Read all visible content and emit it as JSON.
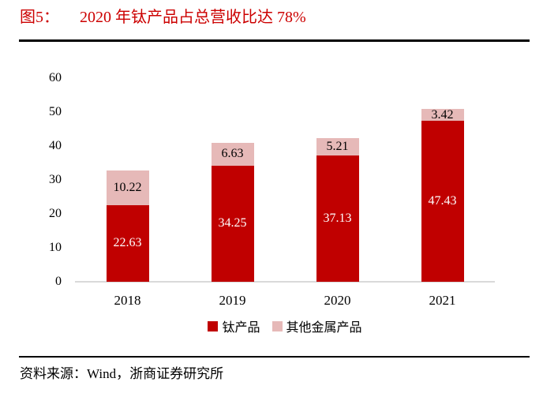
{
  "header": {
    "figure_label": "图5：",
    "title": "2020 年钛产品占总营收比达 78%"
  },
  "colors": {
    "title_red": "#cc0000",
    "bar_red": "#c00000",
    "bar_pink": "#e6b9b8",
    "axis_line": "#d9d9d9",
    "rule_black": "#000000"
  },
  "chart_data": {
    "type": "bar",
    "stacked": true,
    "title": "2020 年钛产品占总营收比达 78%",
    "categories": [
      "2018",
      "2019",
      "2020",
      "2021"
    ],
    "series": [
      {
        "name": "钛产品",
        "color": "#c00000",
        "label_color": "#ffffff",
        "values": [
          22.63,
          34.25,
          37.13,
          47.43
        ]
      },
      {
        "name": "其他金属产品",
        "color": "#e6b9b8",
        "label_color": "#000000",
        "values": [
          10.22,
          6.63,
          5.21,
          3.42
        ]
      }
    ],
    "xlabel": "",
    "ylabel": "",
    "ylim": [
      0,
      60
    ],
    "yticks": [
      0,
      10,
      20,
      30,
      40,
      50,
      60
    ],
    "grid": false,
    "data_labels": true,
    "legend_position": "bottom"
  },
  "footer": {
    "source": "资料来源：Wind，浙商证券研究所"
  }
}
